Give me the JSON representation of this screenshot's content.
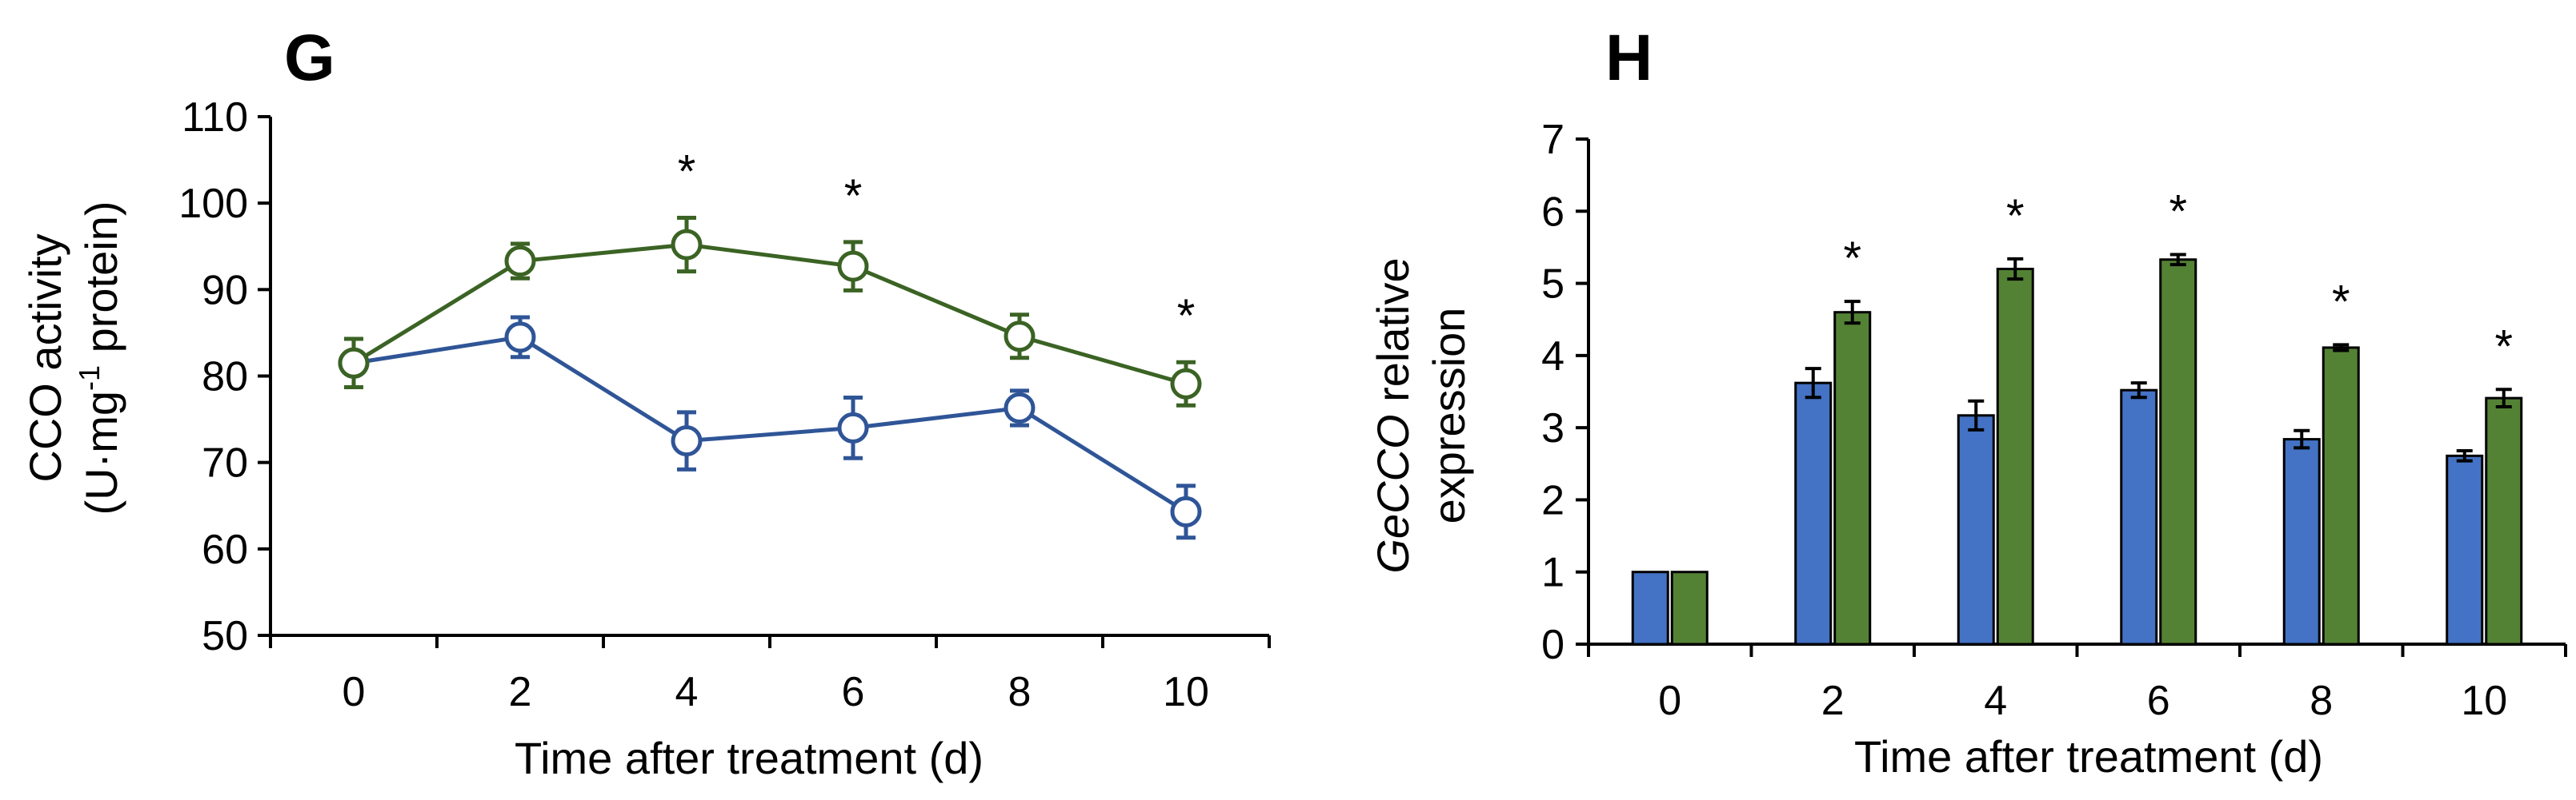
{
  "chart_data": [
    {
      "panel_label": "G",
      "type": "line",
      "x": [
        0,
        2,
        4,
        6,
        8,
        10
      ],
      "xlabel": "Time after treatment (d)",
      "ylabel_line1": "CCO activity",
      "ylabel_line2_prefix": "(U·mg",
      "ylabel_line2_sup": "-1",
      "ylabel_line2_suffix": " protein)",
      "ylim": [
        50,
        110
      ],
      "yticks": [
        50,
        60,
        70,
        80,
        90,
        100,
        110
      ],
      "significance_marker": "*",
      "series": [
        {
          "name": "blue",
          "color": "#2f5597",
          "values": [
            81.5,
            84.5,
            72.5,
            74.0,
            76.3,
            64.3
          ],
          "errors": [
            2.8,
            2.3,
            3.3,
            3.5,
            2.0,
            3.0
          ]
        },
        {
          "name": "green",
          "color": "#3b6324",
          "values": [
            81.5,
            93.3,
            95.2,
            92.7,
            84.6,
            79.1
          ],
          "errors": [
            2.8,
            2.0,
            3.1,
            2.8,
            2.5,
            2.5
          ]
        }
      ],
      "significant_at": [
        4,
        6,
        10
      ]
    },
    {
      "panel_label": "H",
      "type": "bar",
      "categories": [
        "0",
        "2",
        "4",
        "6",
        "8",
        "10"
      ],
      "xlabel": "Time after treatment (d)",
      "ylabel_italic": "GeCCO",
      "ylabel_line1_rest": " relative",
      "ylabel_line2": "expression",
      "ylim": [
        0,
        7
      ],
      "yticks": [
        0,
        1,
        2,
        3,
        4,
        5,
        6,
        7
      ],
      "significance_marker": "*",
      "series": [
        {
          "name": "blue",
          "color": "#4472c4",
          "values": [
            1.0,
            3.62,
            3.17,
            3.52,
            2.84,
            2.61
          ],
          "errors": [
            0.0,
            0.2,
            0.2,
            0.1,
            0.12,
            0.07
          ]
        },
        {
          "name": "green",
          "color": "#548235",
          "values": [
            1.0,
            4.6,
            5.2,
            5.33,
            4.11,
            3.41
          ],
          "errors": [
            0.0,
            0.15,
            0.14,
            0.07,
            0.04,
            0.12
          ]
        }
      ],
      "significant_at": [
        "2",
        "4",
        "6",
        "8",
        "10"
      ]
    }
  ]
}
